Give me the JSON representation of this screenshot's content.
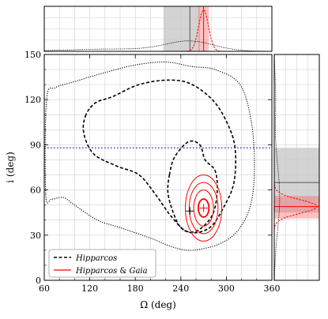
{
  "chart_data": {
    "type": "contour",
    "xlabel": "Ω (deg)",
    "ylabel": "i (deg)",
    "xlim": [
      60,
      360
    ],
    "ylim": [
      0,
      150
    ],
    "x_ticks": [
      60,
      120,
      180,
      240,
      300,
      360
    ],
    "y_ticks": [
      0,
      30,
      60,
      90,
      120,
      150
    ],
    "grid": true,
    "reference_line": {
      "y": 88,
      "color": "#6f7fe0",
      "style": "dotted"
    },
    "legend_position": "lower-left",
    "series": [
      {
        "name": "Hipparcos",
        "style": "dashed",
        "color": "#000000",
        "center": [
          252,
          46
        ],
        "outer_contour": [
          [
            62,
            57
          ],
          [
            70,
            54
          ],
          [
            85,
            55
          ],
          [
            100,
            50
          ],
          [
            130,
            40
          ],
          [
            160,
            35
          ],
          [
            200,
            28
          ],
          [
            230,
            22
          ],
          [
            255,
            20
          ],
          [
            290,
            24
          ],
          [
            315,
            33
          ],
          [
            332,
            50
          ],
          [
            337,
            75
          ],
          [
            333,
            105
          ],
          [
            318,
            130
          ],
          [
            285,
            140
          ],
          [
            255,
            142
          ],
          [
            220,
            145
          ],
          [
            180,
            143
          ],
          [
            140,
            138
          ],
          [
            100,
            132
          ],
          [
            75,
            128
          ],
          [
            63,
            120
          ]
        ],
        "middle_contour": [
          [
            115,
            110
          ],
          [
            112,
            98
          ],
          [
            125,
            84
          ],
          [
            155,
            76
          ],
          [
            185,
            70
          ],
          [
            208,
            56
          ],
          [
            228,
            42
          ],
          [
            250,
            32
          ],
          [
            278,
            35
          ],
          [
            298,
            50
          ],
          [
            310,
            65
          ],
          [
            312,
            85
          ],
          [
            305,
            100
          ],
          [
            285,
            118
          ],
          [
            255,
            130
          ],
          [
            225,
            133
          ],
          [
            185,
            130
          ],
          [
            150,
            122
          ],
          [
            128,
            118
          ]
        ],
        "inner_contour": [
          [
            225,
            70
          ],
          [
            232,
            82
          ],
          [
            250,
            92
          ],
          [
            265,
            90
          ],
          [
            272,
            80
          ],
          [
            285,
            73
          ],
          [
            288,
            60
          ],
          [
            283,
            45
          ],
          [
            270,
            36
          ],
          [
            255,
            32
          ],
          [
            240,
            35
          ],
          [
            230,
            45
          ],
          [
            223,
            58
          ]
        ]
      },
      {
        "name": "Hipparcos & Gaia",
        "style": "solid",
        "color": "#ff0000",
        "center": [
          270,
          48
        ],
        "contour_levels": [
          {
            "rx": 7,
            "ry": 6
          },
          {
            "rx": 13,
            "ry": 12
          },
          {
            "rx": 19,
            "ry": 17
          },
          {
            "rx": 24,
            "ry": 22
          }
        ]
      }
    ],
    "top_panel": {
      "hipparcos_peak": 252,
      "hipparcos_shaded_range": [
        217,
        265
      ],
      "gaia_peak": 270,
      "gaia_shaded_range": [
        263,
        277
      ]
    },
    "right_panel": {
      "hipparcos_median": 65,
      "hipparcos_shaded_range": [
        45,
        88
      ],
      "gaia_peak": 49,
      "gaia_shaded_range": [
        41,
        56
      ]
    },
    "tick_text": {
      "x": [
        "60",
        "120",
        "180",
        "240",
        "300",
        "360"
      ],
      "y": [
        "0",
        "30",
        "60",
        "90",
        "120",
        "150"
      ]
    }
  },
  "legend": {
    "hip_label": "Hipparcos",
    "gaia_label_a": "Hipparcos",
    "gaia_label_amp": " & ",
    "gaia_label_b": "Gaia"
  }
}
